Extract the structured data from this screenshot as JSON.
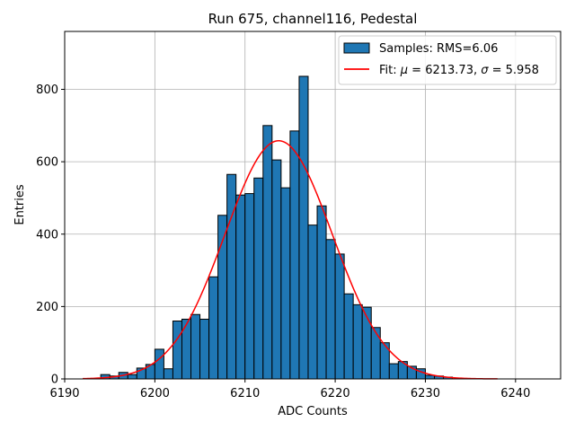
{
  "chart_data": {
    "type": "bar",
    "title": "Run 675, channel116, Pedestal",
    "xlabel": "ADC Counts",
    "ylabel": "Entries",
    "xlim": [
      6190,
      6245
    ],
    "ylim": [
      0,
      960
    ],
    "xticks": [
      6190,
      6200,
      6210,
      6220,
      6230,
      6240
    ],
    "yticks": [
      0,
      200,
      400,
      600,
      800
    ],
    "grid": true,
    "legend_position": "top-right",
    "histogram": {
      "name": "Samples: RMS=6.06",
      "color": "#1f77b4",
      "bins": [
        {
          "x0": 6194,
          "x1": 6195,
          "value": 12
        },
        {
          "x0": 6195,
          "x1": 6196,
          "value": 8
        },
        {
          "x0": 6196,
          "x1": 6197,
          "value": 18
        },
        {
          "x0": 6197,
          "x1": 6198,
          "value": 12
        },
        {
          "x0": 6198,
          "x1": 6199,
          "value": 30
        },
        {
          "x0": 6199,
          "x1": 6200,
          "value": 40
        },
        {
          "x0": 6200,
          "x1": 6201,
          "value": 82
        },
        {
          "x0": 6201,
          "x1": 6202,
          "value": 28
        },
        {
          "x0": 6202,
          "x1": 6203,
          "value": 160
        },
        {
          "x0": 6203,
          "x1": 6204,
          "value": 165
        },
        {
          "x0": 6204,
          "x1": 6205,
          "value": 178
        },
        {
          "x0": 6205,
          "x1": 6206,
          "value": 165
        },
        {
          "x0": 6206,
          "x1": 6207,
          "value": 282
        },
        {
          "x0": 6207,
          "x1": 6208,
          "value": 452
        },
        {
          "x0": 6208,
          "x1": 6209,
          "value": 565
        },
        {
          "x0": 6209,
          "x1": 6210,
          "value": 508
        },
        {
          "x0": 6210,
          "x1": 6211,
          "value": 512
        },
        {
          "x0": 6211,
          "x1": 6212,
          "value": 555
        },
        {
          "x0": 6212,
          "x1": 6213,
          "value": 700
        },
        {
          "x0": 6213,
          "x1": 6214,
          "value": 605
        },
        {
          "x0": 6214,
          "x1": 6215,
          "value": 528
        },
        {
          "x0": 6215,
          "x1": 6216,
          "value": 685
        },
        {
          "x0": 6216,
          "x1": 6217,
          "value": 836
        },
        {
          "x0": 6217,
          "x1": 6218,
          "value": 425
        },
        {
          "x0": 6218,
          "x1": 6219,
          "value": 478
        },
        {
          "x0": 6219,
          "x1": 6220,
          "value": 385
        },
        {
          "x0": 6220,
          "x1": 6221,
          "value": 345
        },
        {
          "x0": 6221,
          "x1": 6222,
          "value": 235
        },
        {
          "x0": 6222,
          "x1": 6223,
          "value": 205
        },
        {
          "x0": 6223,
          "x1": 6224,
          "value": 198
        },
        {
          "x0": 6224,
          "x1": 6225,
          "value": 142
        },
        {
          "x0": 6225,
          "x1": 6226,
          "value": 100
        },
        {
          "x0": 6226,
          "x1": 6227,
          "value": 42
        },
        {
          "x0": 6227,
          "x1": 6228,
          "value": 48
        },
        {
          "x0": 6228,
          "x1": 6229,
          "value": 35
        },
        {
          "x0": 6229,
          "x1": 6230,
          "value": 28
        },
        {
          "x0": 6230,
          "x1": 6231,
          "value": 10
        },
        {
          "x0": 6231,
          "x1": 6232,
          "value": 8
        },
        {
          "x0": 6232,
          "x1": 6233,
          "value": 5
        }
      ]
    },
    "fit": {
      "name": "Fit: μ = 6213.73, σ = 5.958",
      "name_parts": [
        "Fit: ",
        "μ",
        " = 6213.73, ",
        "σ",
        " = 5.958"
      ],
      "color": "#ff0000",
      "type": "gaussian",
      "mu": 6213.73,
      "sigma": 5.958,
      "amplitude": 658,
      "x_range": [
        6192,
        6238
      ]
    }
  }
}
